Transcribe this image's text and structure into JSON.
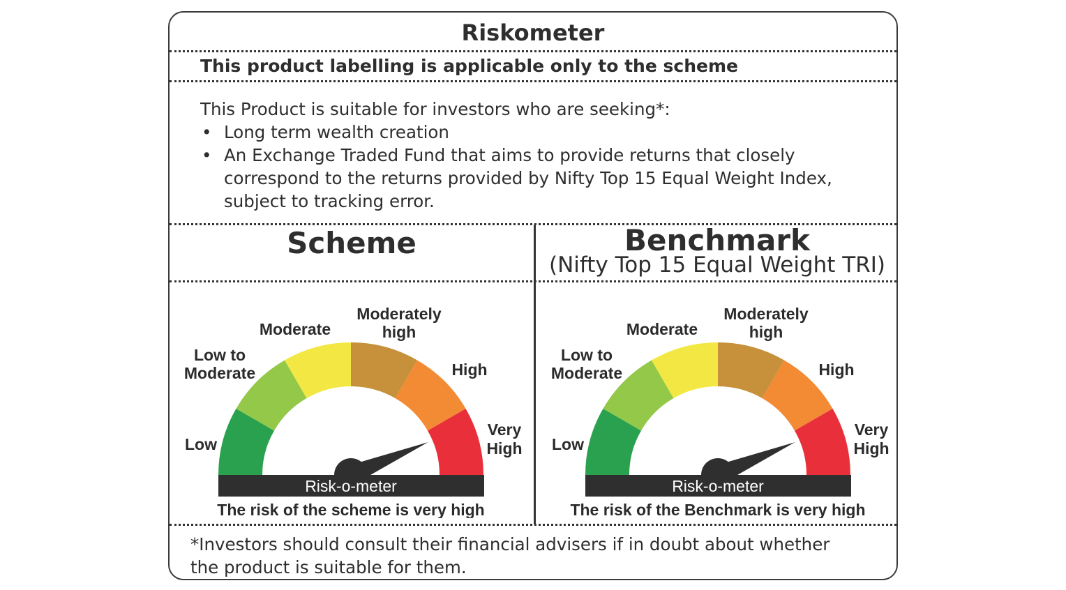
{
  "title": "Riskometer",
  "labelling_note": "This product labelling is applicable only to the scheme",
  "suitability": {
    "intro": "This Product is suitable for investors who are seeking*:",
    "bullet_glyph": "•",
    "bullets": [
      "Long term wealth creation",
      "An Exchange Traded Fund that aims to provide returns that closely correspond to the returns provided by Nifty Top 15 Equal Weight Index, subject to tracking error."
    ]
  },
  "scheme": {
    "heading": "Scheme",
    "meter_label": "Risk-o-meter",
    "caption": "The risk of the scheme is very high",
    "risk_level": "Very High"
  },
  "benchmark": {
    "heading": "Benchmark",
    "subheading": "(Nifty Top 15 Equal Weight TRI)",
    "meter_label": "Risk-o-meter",
    "caption": "The risk of the Benchmark is very high",
    "risk_level": "Very High"
  },
  "risk_levels": [
    {
      "label": [
        "Low"
      ],
      "color": "#2aa14e"
    },
    {
      "label": [
        "Low to",
        "Moderate"
      ],
      "color": "#93c849"
    },
    {
      "label": [
        "Moderate"
      ],
      "color": "#f3e843"
    },
    {
      "label": [
        "Moderately",
        "high"
      ],
      "color": "#c6913a"
    },
    {
      "label": [
        "High"
      ],
      "color": "#f38b34"
    },
    {
      "label": [
        "Very",
        "High"
      ],
      "color": "#e9303a"
    }
  ],
  "footnote": "*Investors should consult their financial advisers if in doubt about whether the product is suitable for them."
}
